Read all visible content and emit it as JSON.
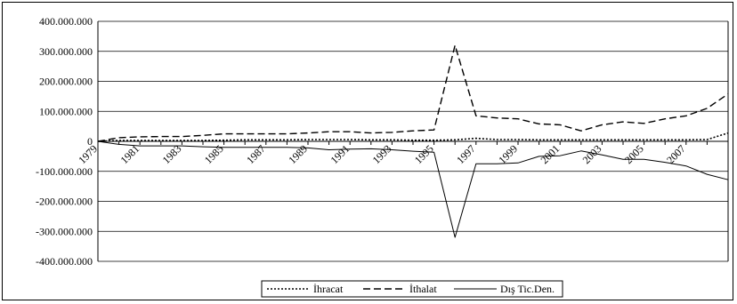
{
  "chart_data": {
    "type": "line",
    "title": "",
    "xlabel": "",
    "ylabel": "",
    "ylim": [
      -400000000,
      400000000
    ],
    "yticks": [
      400000000,
      300000000,
      200000000,
      100000000,
      0,
      -100000000,
      -200000000,
      -300000000,
      -400000000
    ],
    "ytick_labels": [
      "400.000.000",
      "300.000.000",
      "200.000.000",
      "100.000.000",
      "0",
      "-100.000.000",
      "-200.000.000",
      "-300.000.000",
      "-400.000.000"
    ],
    "x": [
      1979,
      1980,
      1981,
      1982,
      1983,
      1984,
      1985,
      1986,
      1987,
      1988,
      1989,
      1990,
      1991,
      1992,
      1993,
      1994,
      1995,
      1996,
      1997,
      1998,
      1999,
      2000,
      2001,
      2002,
      2003,
      2004,
      2005,
      2006,
      2007,
      2008,
      2009
    ],
    "xtick_labels": [
      "1979",
      "1981",
      "1983",
      "1985",
      "1987",
      "1989",
      "1991",
      "1993",
      "1995",
      "1997",
      "1999",
      "2001",
      "2003",
      "2005",
      "2007"
    ],
    "xtick_values": [
      1979,
      1981,
      1983,
      1985,
      1987,
      1989,
      1991,
      1993,
      1995,
      1997,
      1999,
      2001,
      2003,
      2005,
      2007
    ],
    "grid": true,
    "legend_position": "bottom",
    "series": [
      {
        "name": "İhracat",
        "style": "dotted",
        "values": [
          0,
          3000000,
          3000000,
          3000000,
          3000000,
          3000000,
          4000000,
          5000000,
          5000000,
          5000000,
          6000000,
          6000000,
          6000000,
          5000000,
          5000000,
          4000000,
          4000000,
          5000000,
          10000000,
          6000000,
          6000000,
          5000000,
          5000000,
          5000000,
          5000000,
          5000000,
          5000000,
          5000000,
          5000000,
          6000000,
          28000000
        ]
      },
      {
        "name": "İthalat",
        "style": "dashed",
        "values": [
          0,
          12000000,
          15000000,
          16000000,
          16000000,
          20000000,
          25000000,
          25000000,
          25000000,
          25000000,
          28000000,
          32000000,
          32000000,
          28000000,
          30000000,
          35000000,
          38000000,
          320000000,
          85000000,
          78000000,
          75000000,
          58000000,
          55000000,
          35000000,
          55000000,
          65000000,
          60000000,
          75000000,
          85000000,
          110000000,
          158000000
        ]
      },
      {
        "name": "Dış Tic.Den.",
        "style": "solid",
        "values": [
          0,
          -10000000,
          -15000000,
          -15000000,
          -15000000,
          -18000000,
          -20000000,
          -20000000,
          -20000000,
          -20000000,
          -22000000,
          -28000000,
          -26000000,
          -25000000,
          -28000000,
          -33000000,
          -36000000,
          -320000000,
          -75000000,
          -75000000,
          -72000000,
          -50000000,
          -48000000,
          -32000000,
          -45000000,
          -60000000,
          -60000000,
          -70000000,
          -82000000,
          -110000000,
          -128000000
        ]
      }
    ]
  }
}
